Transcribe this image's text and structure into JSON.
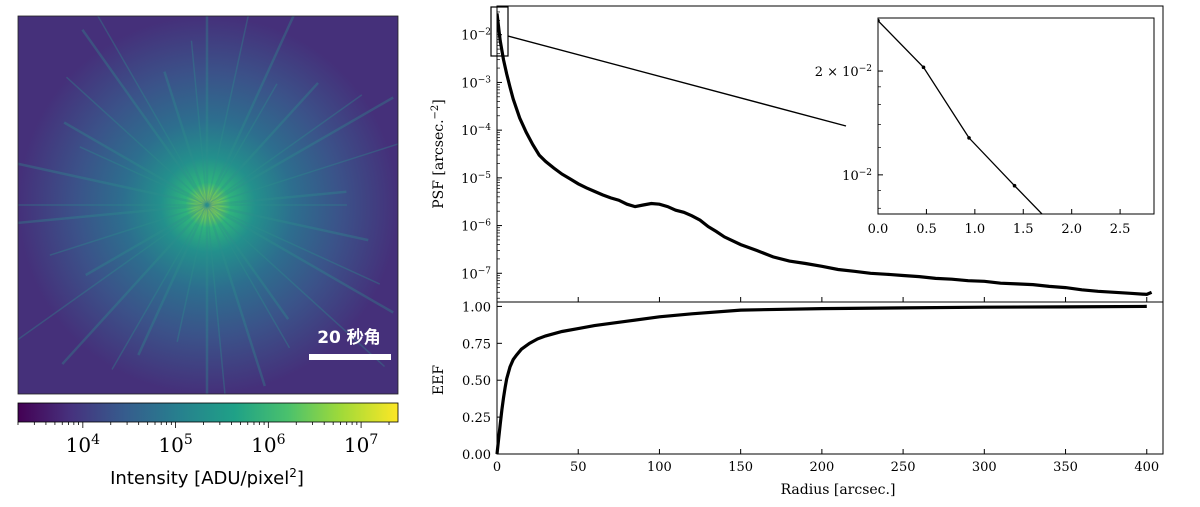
{
  "image_panel": {
    "scale_bar_label": "20 秒角",
    "colormap": "viridis",
    "colorbar": {
      "label": "Intensity [ADU/pixel",
      "label_sup": "2",
      "label_close": "]",
      "scale": "log",
      "range": [
        2000,
        25000000
      ],
      "ticks": [
        {
          "value": 10000,
          "base": "10",
          "exp": "4"
        },
        {
          "value": 100000,
          "base": "10",
          "exp": "5"
        },
        {
          "value": 1000000,
          "base": "10",
          "exp": "6"
        },
        {
          "value": 10000000,
          "base": "10",
          "exp": "7"
        }
      ]
    }
  },
  "chart_data": [
    {
      "id": "psf",
      "type": "line",
      "ylabel": "PSF [arcsec.",
      "ylabel_sup": "−2",
      "ylabel_close": "]",
      "yscale": "log",
      "xlim": [
        0,
        410
      ],
      "ylim": [
        2.5e-08,
        0.04
      ],
      "grid": false,
      "yticks": [
        {
          "value": 0.01,
          "base": "10",
          "exp": "−2"
        },
        {
          "value": 0.001,
          "base": "10",
          "exp": "−3"
        },
        {
          "value": 0.0001,
          "base": "10",
          "exp": "−4"
        },
        {
          "value": 1e-05,
          "base": "10",
          "exp": "−5"
        },
        {
          "value": 1e-06,
          "base": "10",
          "exp": "−6"
        },
        {
          "value": 1e-07,
          "base": "10",
          "exp": "−7"
        }
      ],
      "series": [
        {
          "x": [
            0,
            2,
            4,
            6,
            8,
            10,
            14,
            18,
            22,
            26,
            30,
            35,
            40,
            45,
            50,
            55,
            60,
            65,
            70,
            75,
            80,
            85,
            90,
            95,
            100,
            105,
            110,
            115,
            120,
            125,
            130,
            135,
            140,
            150,
            160,
            170,
            180,
            190,
            200,
            210,
            220,
            230,
            240,
            250,
            260,
            270,
            280,
            290,
            300,
            310,
            320,
            330,
            340,
            350,
            360,
            370,
            380,
            390,
            400,
            403
          ],
          "y": [
            0.028,
            0.0075,
            0.003,
            0.0015,
            0.0008,
            0.00045,
            0.00018,
            9e-05,
            5e-05,
            3e-05,
            2.2e-05,
            1.6e-05,
            1.2e-05,
            9.5e-06,
            7.5e-06,
            6.2e-06,
            5.2e-06,
            4.4e-06,
            3.8e-06,
            3.4e-06,
            2.8e-06,
            2.5e-06,
            2.7e-06,
            2.9e-06,
            2.8e-06,
            2.5e-06,
            2.1e-06,
            1.9e-06,
            1.6e-06,
            1.3e-06,
            9.5e-07,
            7.5e-07,
            5.8e-07,
            4e-07,
            3e-07,
            2.2e-07,
            1.8e-07,
            1.6e-07,
            1.4e-07,
            1.2e-07,
            1.1e-07,
            1e-07,
            9.5e-08,
            9e-08,
            8.5e-08,
            7.8e-08,
            7.5e-08,
            7e-08,
            6.8e-08,
            6.2e-08,
            6e-08,
            5.8e-08,
            5.3e-08,
            5e-08,
            4.5e-08,
            4.2e-08,
            4e-08,
            3.8e-08,
            3.6e-08,
            4e-08
          ]
        }
      ]
    },
    {
      "id": "psf_inset",
      "type": "line",
      "yscale": "log",
      "xlim": [
        0,
        2.85
      ],
      "ylim": [
        0.0077,
        0.0285
      ],
      "grid": false,
      "xticks": [
        "0.0",
        "0.5",
        "1.0",
        "1.5",
        "2.0",
        "2.5"
      ],
      "yticks": [
        {
          "value": 0.02,
          "prefix": "2 × 10",
          "exp": "−2"
        },
        {
          "value": 0.01,
          "prefix": "10",
          "exp": "−2"
        }
      ],
      "series": [
        {
          "x": [
            0,
            0.47,
            0.94,
            1.41,
            1.88
          ],
          "y": [
            0.028,
            0.0205,
            0.0128,
            0.0093,
            0.0068
          ]
        }
      ]
    },
    {
      "id": "eef",
      "type": "line",
      "xlabel": "Radius [arcsec.]",
      "ylabel": "EEF",
      "xlim": [
        0,
        410
      ],
      "ylim": [
        0,
        1.03
      ],
      "grid": false,
      "xticks": [
        "0",
        "50",
        "100",
        "150",
        "200",
        "250",
        "300",
        "350",
        "400"
      ],
      "yticks": [
        "0.00",
        "0.25",
        "0.50",
        "0.75",
        "1.00"
      ],
      "series": [
        {
          "x": [
            0,
            1,
            2,
            3,
            4,
            5,
            6,
            8,
            10,
            12,
            15,
            20,
            25,
            30,
            40,
            50,
            60,
            80,
            100,
            120,
            150,
            200,
            250,
            300,
            350,
            400
          ],
          "y": [
            0.0,
            0.1,
            0.2,
            0.3,
            0.38,
            0.45,
            0.51,
            0.59,
            0.64,
            0.67,
            0.71,
            0.75,
            0.78,
            0.8,
            0.83,
            0.85,
            0.87,
            0.9,
            0.93,
            0.95,
            0.975,
            0.985,
            0.99,
            0.995,
            0.997,
            1.0
          ]
        }
      ]
    }
  ]
}
